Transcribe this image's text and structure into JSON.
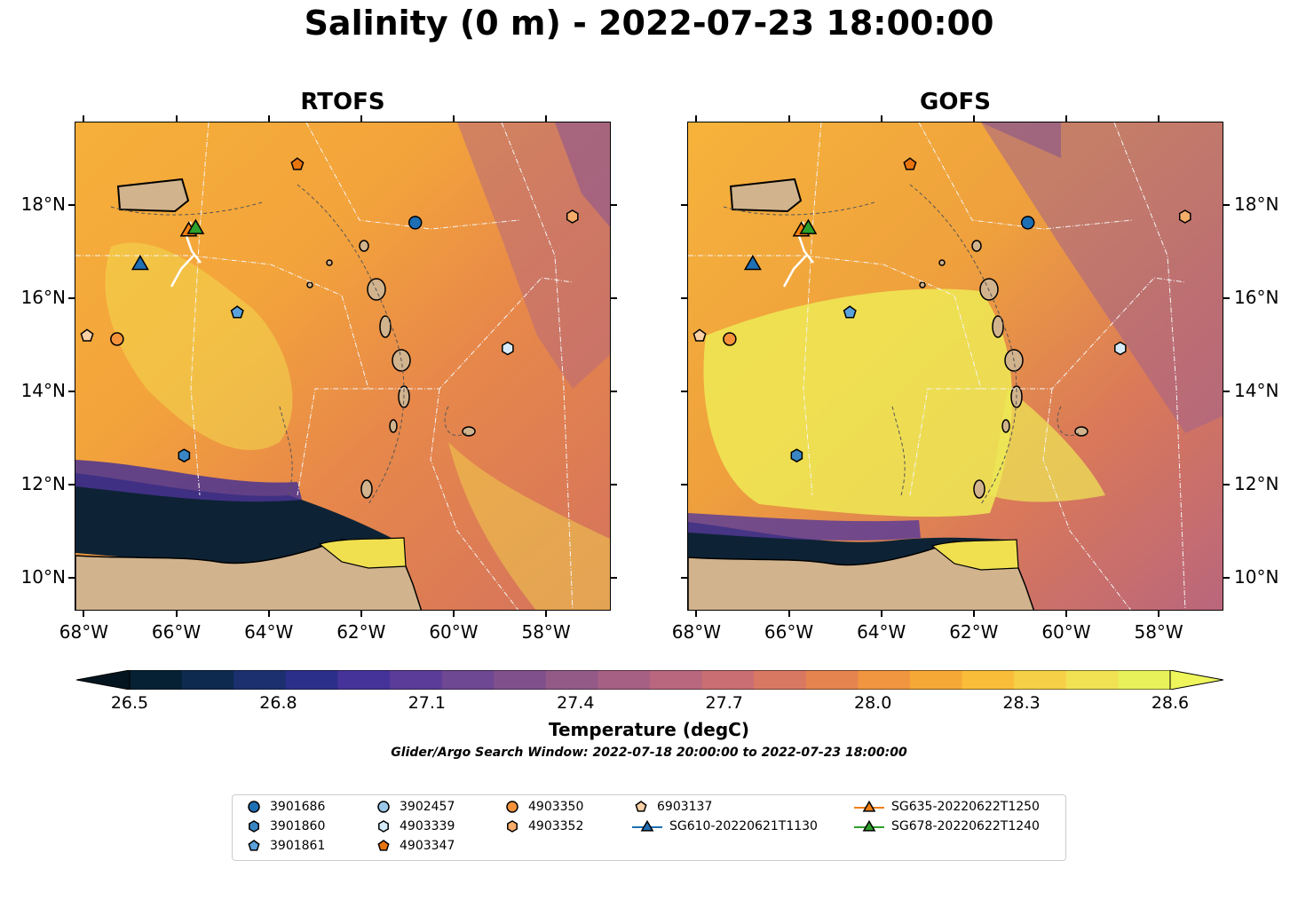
{
  "title": "Salinity (0 m) - 2022-07-23 18:00:00",
  "panels": [
    {
      "title": "RTOFS"
    },
    {
      "title": "GOFS"
    }
  ],
  "axes": {
    "lon_ticks": [
      "68°W",
      "66°W",
      "64°W",
      "62°W",
      "60°W",
      "58°W"
    ],
    "lat_ticks": [
      "18°N",
      "16°N",
      "14°N",
      "12°N",
      "10°N"
    ],
    "lon_range": [
      -68.2,
      -56.6
    ],
    "lat_range": [
      9.3,
      19.8
    ]
  },
  "colorbar": {
    "label": "Temperature (degC)",
    "ticks": [
      "26.5",
      "26.8",
      "27.1",
      "27.4",
      "27.7",
      "28.0",
      "28.3",
      "28.6"
    ],
    "range": [
      26.5,
      28.6
    ],
    "colors": [
      "#062133",
      "#0e2a4f",
      "#1c3070",
      "#2c2f8a",
      "#46339a",
      "#5b3c98",
      "#6e4893",
      "#80508d",
      "#935a88",
      "#a66084",
      "#b8677e",
      "#c96e73",
      "#d97862",
      "#e5844f",
      "#f09640",
      "#f6a837",
      "#f9bd3a",
      "#f6d046",
      "#f0e253",
      "#e8f159"
    ]
  },
  "search_window": "Glider/Argo Search Window: 2022-07-18 20:00:00 to 2022-07-23 18:00:00",
  "legend": [
    {
      "label": "3901686",
      "marker": "circle",
      "color": "#1f6fb4"
    },
    {
      "label": "3901860",
      "marker": "hexagon",
      "color": "#3a86c4"
    },
    {
      "label": "3901861",
      "marker": "pentagon",
      "color": "#5aa2dc"
    },
    {
      "label": "3902457",
      "marker": "circle",
      "color": "#9cc8ea"
    },
    {
      "label": "4903339",
      "marker": "hexagon",
      "color": "#d6ecfa"
    },
    {
      "label": "4903347",
      "marker": "pentagon",
      "color": "#e8740d"
    },
    {
      "label": "4903350",
      "marker": "circle",
      "color": "#f5923a"
    },
    {
      "label": "4903352",
      "marker": "hexagon",
      "color": "#f7ad6a"
    },
    {
      "label": "6903137",
      "marker": "pentagon",
      "color": "#fbd0a4"
    },
    {
      "label": "SG610-20220621T1130",
      "marker": "triangle",
      "color": "#1f6fb4"
    },
    {
      "label": "SG635-20220622T1250",
      "marker": "triangle",
      "color": "#f07f12"
    },
    {
      "label": "SG678-20220622T1240",
      "marker": "triangle",
      "color": "#2ca02c"
    }
  ],
  "markers": [
    {
      "id": "3901686",
      "lon": -60.85,
      "lat": 17.65
    },
    {
      "id": "3901860",
      "lon": -65.85,
      "lat": 12.65
    },
    {
      "id": "3901861",
      "lon": -64.7,
      "lat": 15.72
    },
    {
      "id": "4903339",
      "lon": -58.85,
      "lat": 14.95
    },
    {
      "id": "4903347",
      "lon": -63.4,
      "lat": 18.9
    },
    {
      "id": "4903350",
      "lon": -67.3,
      "lat": 15.15
    },
    {
      "id": "4903352",
      "lon": -57.45,
      "lat": 17.78
    },
    {
      "id": "6903137",
      "lon": -67.95,
      "lat": 15.22
    },
    {
      "id": "SG610-20220621T1130",
      "lon": -66.8,
      "lat": 16.78
    },
    {
      "id": "SG635-20220622T1250",
      "lon": -65.75,
      "lat": 17.5
    },
    {
      "id": "SG678-20220622T1240",
      "lon": -65.6,
      "lat": 17.55
    }
  ]
}
